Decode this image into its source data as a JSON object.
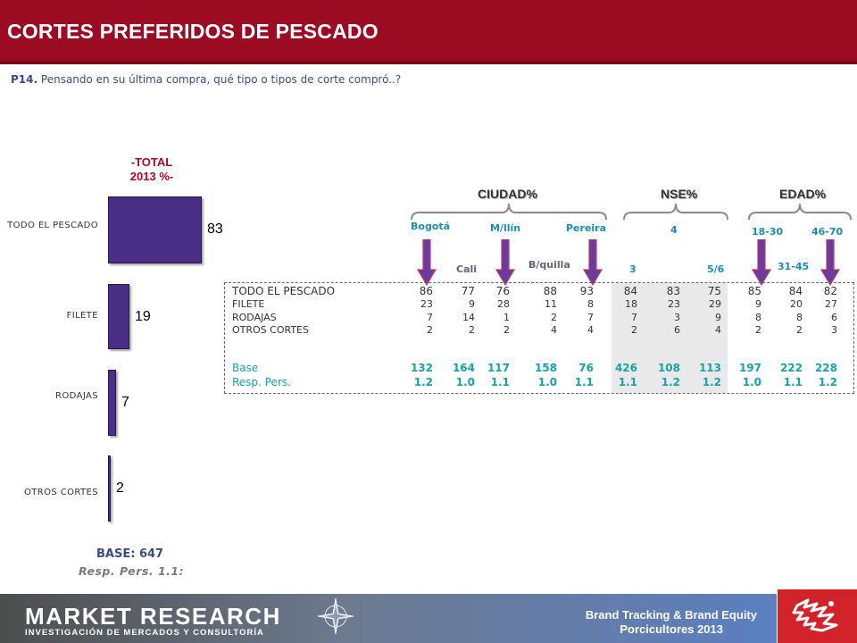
{
  "header": {
    "title": "CORTES PREFERIDOS DE PESCADO"
  },
  "question": {
    "number": "P14.",
    "text": "Pensando en su última compra, qué tipo o tipos de corte compró..?"
  },
  "total": {
    "heading_line1": "-TOTAL",
    "heading_line2": "2013 %-",
    "base": "BASE:  647",
    "resp": "Resp. Pers.  1.1:",
    "bar_color": "#4a2f86"
  },
  "chart_data": {
    "type": "bar",
    "orientation": "vertical-categories",
    "categories": [
      "TODO EL PESCADO",
      "FILETE",
      "RODAJAS",
      "OTROS CORTES"
    ],
    "values": [
      83,
      19,
      7,
      2
    ],
    "title": "-TOTAL 2013 %-"
  },
  "groups": {
    "ciudad": "CIUDAD%",
    "nse": "NSE%",
    "edad": "EDAD%"
  },
  "segments": {
    "bogota": "Bogotá",
    "cali": "Cali",
    "medellin": "M/llín",
    "barranquilla": "B/quilla",
    "pereira": "Pereira",
    "nse3": "3",
    "nse4": "4",
    "nse56": "5/6",
    "edad1": "18-30",
    "edad2": "31-45",
    "edad3": "46-70",
    "arrow_color": "#6a3ca0"
  },
  "table": {
    "rows": [
      {
        "label": "TODO EL PESCADO",
        "values": [
          "86",
          "77",
          "76",
          "88",
          "93",
          "84",
          "83",
          "75",
          "85",
          "84",
          "82"
        ]
      },
      {
        "label": "FILETE",
        "values": [
          "23",
          "9",
          "28",
          "11",
          "8",
          "18",
          "23",
          "29",
          "9",
          "20",
          "27"
        ]
      },
      {
        "label": "RODAJAS",
        "values": [
          "7",
          "14",
          "1",
          "2",
          "7",
          "7",
          "3",
          "9",
          "8",
          "8",
          "6"
        ]
      },
      {
        "label": "OTROS CORTES",
        "values": [
          "2",
          "2",
          "2",
          "4",
          "4",
          "2",
          "6",
          "4",
          "2",
          "2",
          "3"
        ]
      }
    ],
    "base": {
      "label": "Base",
      "values": [
        "132",
        "164",
        "117",
        "158",
        "76",
        "426",
        "108",
        "113",
        "197",
        "222",
        "228"
      ]
    },
    "resp": {
      "label": "Resp. Pers.",
      "values": [
        "1.2",
        "1.0",
        "1.1",
        "1.0",
        "1.1",
        "1.1",
        "1.2",
        "1.2",
        "1.0",
        "1.1",
        "1.2"
      ]
    }
  },
  "footer": {
    "company": "MARKET RESEARCH",
    "company_sub": "INVESTIGACIÓN DE MERCADOS Y CONSULTORÍA",
    "study_line1": "Brand Tracking & Brand Equity",
    "study_line2": "Porcicultores 2013",
    "logo_color": "#d2232a"
  }
}
